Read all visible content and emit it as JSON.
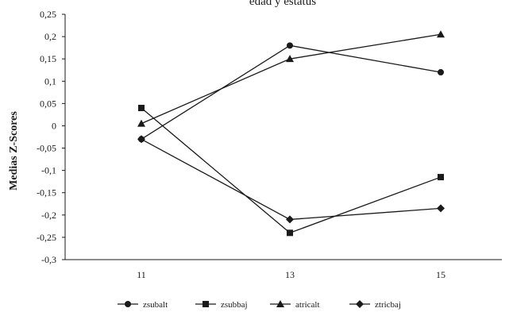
{
  "chart_data": {
    "type": "line",
    "title": "edad y estatus",
    "xlabel": "",
    "ylabel": "Medias Z-Scores",
    "categories": [
      "11",
      "13",
      "15"
    ],
    "ylim": [
      -0.3,
      0.25
    ],
    "ytick_step": 0.05,
    "yticks": [
      "0,25",
      "0,2",
      "0,15",
      "0,1",
      "0,05",
      "0",
      "-0,05",
      "-0,1",
      "-0,15",
      "-0,2",
      "-0,25",
      "-0,3"
    ],
    "grid": false,
    "legend_position": "bottom",
    "line_color": "#1a1a1a",
    "series": [
      {
        "name": "zsubalt",
        "marker": "circle",
        "values": [
          -0.03,
          0.18,
          0.12
        ]
      },
      {
        "name": "zsubbaj",
        "marker": "square",
        "values": [
          0.04,
          -0.24,
          -0.115
        ]
      },
      {
        "name": "atricalt",
        "marker": "triangle",
        "values": [
          0.005,
          0.15,
          0.205
        ]
      },
      {
        "name": "ztricbaj",
        "marker": "diamond",
        "values": [
          -0.03,
          -0.21,
          -0.185
        ]
      }
    ]
  }
}
